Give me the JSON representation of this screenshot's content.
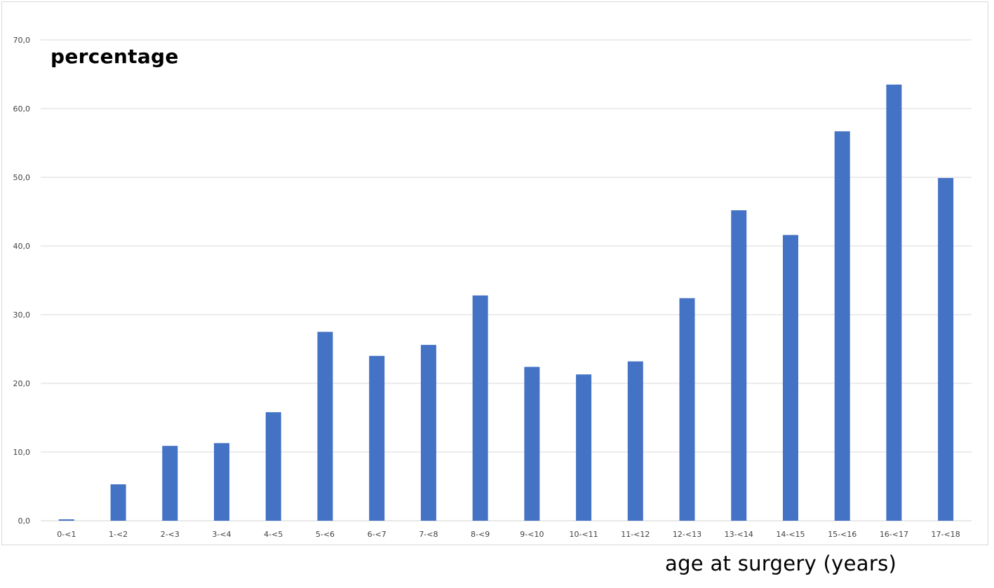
{
  "chart_data": {
    "type": "bar",
    "ylabel": "percentage",
    "xlabel": "age at surgery (years)",
    "categories": [
      "0-<1",
      "1-<2",
      "2-<3",
      "3-<4",
      "4-<5",
      "5-<6",
      "6-<7",
      "7-<8",
      "8-<9",
      "9-<10",
      "10-<11",
      "11-<12",
      "12-<13",
      "13-<14",
      "14-<15",
      "15-<16",
      "16-<17",
      "17-<18"
    ],
    "values": [
      0.2,
      5.3,
      10.9,
      11.3,
      15.8,
      27.5,
      24.0,
      25.6,
      32.8,
      22.4,
      21.3,
      23.2,
      32.4,
      45.2,
      41.6,
      56.7,
      63.5,
      49.9
    ],
    "ylim": [
      0,
      70
    ],
    "yticks": [
      "0,0",
      "10,0",
      "20,0",
      "30,0",
      "40,0",
      "50,0",
      "60,0",
      "70,0"
    ],
    "ytick_values": [
      0,
      10,
      20,
      30,
      40,
      50,
      60,
      70
    ],
    "grid": true,
    "legend": "none",
    "bar_color": "#4472C4",
    "grid_color": "#d9d9d9"
  }
}
